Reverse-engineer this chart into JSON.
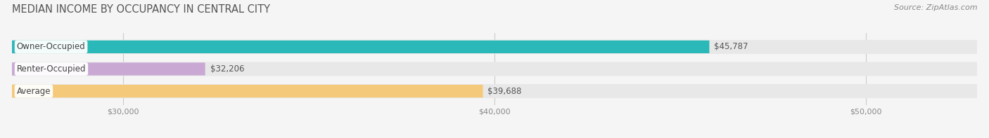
{
  "title": "MEDIAN INCOME BY OCCUPANCY IN CENTRAL CITY",
  "source": "Source: ZipAtlas.com",
  "categories": [
    "Owner-Occupied",
    "Renter-Occupied",
    "Average"
  ],
  "values": [
    45787,
    32206,
    39688
  ],
  "bar_colors": [
    "#2ab8b8",
    "#c9a8d4",
    "#f5c97a"
  ],
  "value_labels": [
    "$45,787",
    "$32,206",
    "$39,688"
  ],
  "xmin": 27000,
  "xmax": 53000,
  "xticks": [
    30000,
    40000,
    50000
  ],
  "xtick_labels": [
    "$30,000",
    "$40,000",
    "$50,000"
  ],
  "title_fontsize": 10.5,
  "source_fontsize": 8,
  "label_fontsize": 8.5,
  "value_fontsize": 8.5,
  "tick_fontsize": 8,
  "bg_color": "#f5f5f5",
  "bar_bg_color": "#e0e0e0",
  "grid_color": "#cccccc",
  "text_color": "#555555",
  "source_color": "#888888"
}
